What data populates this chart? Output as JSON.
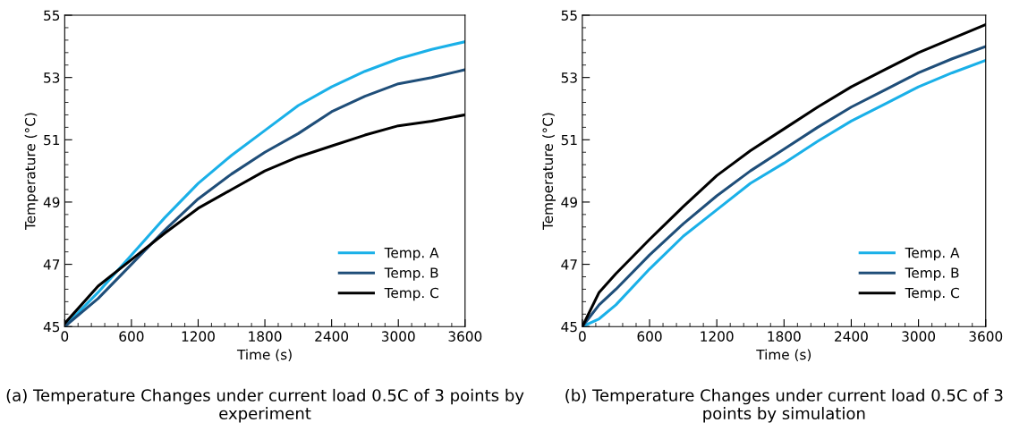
{
  "chart_data": [
    {
      "type": "line",
      "xlabel": "Time (s)",
      "ylabel": "Temperature (°C)",
      "x": [
        0,
        300,
        600,
        900,
        1200,
        1500,
        1800,
        2100,
        2400,
        2700,
        3000,
        3300,
        3600
      ],
      "series": [
        {
          "name": "Temp. A",
          "color": "#1ab0e8",
          "values": [
            45.0,
            46.1,
            47.3,
            48.5,
            49.6,
            50.5,
            51.3,
            52.1,
            52.7,
            53.2,
            53.6,
            53.9,
            54.15
          ]
        },
        {
          "name": "Temp. B",
          "color": "#1f4e79",
          "values": [
            45.0,
            45.9,
            47.0,
            48.1,
            49.1,
            49.9,
            50.6,
            51.2,
            51.9,
            52.4,
            52.8,
            53.0,
            53.25
          ]
        },
        {
          "name": "Temp. C",
          "color": "#000000",
          "values": [
            45.1,
            46.3,
            47.15,
            48.0,
            48.8,
            49.4,
            50.0,
            50.45,
            50.8,
            51.15,
            51.45,
            51.6,
            51.8
          ]
        }
      ],
      "xlim": [
        0,
        3600
      ],
      "xticks": [
        0,
        600,
        1200,
        1800,
        2400,
        3000,
        3600
      ],
      "ylim": [
        45,
        55
      ],
      "yticks": [
        45,
        47,
        49,
        51,
        53,
        55
      ],
      "grid": false,
      "legend": "bottom right",
      "marker": "none",
      "line_style": "solid",
      "annotations": [
        "(a) Temperature Changes under current load 0.5C of 3 points by experiment"
      ]
    },
    {
      "type": "line",
      "xlabel": "Time (s)",
      "ylabel": "Temperature (°C)",
      "x": [
        0,
        150,
        300,
        600,
        900,
        1200,
        1500,
        1800,
        2100,
        2400,
        2700,
        3000,
        3300,
        3600
      ],
      "series": [
        {
          "name": "Temp. A",
          "color": "#1ab0e8",
          "values": [
            45.0,
            45.25,
            45.7,
            46.85,
            47.9,
            48.75,
            49.6,
            50.25,
            50.95,
            51.6,
            52.15,
            52.7,
            53.15,
            53.55
          ]
        },
        {
          "name": "Temp. B",
          "color": "#1f4e79",
          "values": [
            45.0,
            45.7,
            46.2,
            47.3,
            48.3,
            49.2,
            50.0,
            50.7,
            51.4,
            52.05,
            52.6,
            53.15,
            53.6,
            54.0
          ]
        },
        {
          "name": "Temp. C",
          "color": "#000000",
          "values": [
            45.0,
            46.1,
            46.7,
            47.8,
            48.85,
            49.85,
            50.65,
            51.35,
            52.05,
            52.7,
            53.25,
            53.8,
            54.25,
            54.7
          ]
        }
      ],
      "xlim": [
        0,
        3600
      ],
      "xticks": [
        0,
        600,
        1200,
        1800,
        2400,
        3000,
        3600
      ],
      "ylim": [
        45,
        55
      ],
      "yticks": [
        45,
        47,
        49,
        51,
        53,
        55
      ],
      "grid": false,
      "legend": "bottom right",
      "marker": "none",
      "line_style": "solid",
      "annotations": [
        "(b) Temperature Changes under current load 0.5C of 3 points by simulation"
      ]
    }
  ]
}
